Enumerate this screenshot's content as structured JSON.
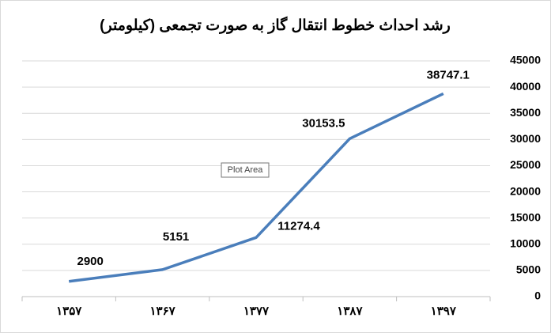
{
  "chart_data": {
    "type": "line",
    "title": "رشد احداث خطوط انتقال گاز به صورت تجمعی (کیلومتر)",
    "categories": [
      "۱۳۵۷",
      "۱۳۶۷",
      "۱۳۷۷",
      "۱۳۸۷",
      "۱۳۹۷"
    ],
    "series": [
      {
        "color": "#4a7ebb",
        "values": [
          2900,
          5151,
          11274.4,
          30153.5,
          38747.1
        ]
      }
    ],
    "ylim": [
      0,
      45000
    ],
    "yticks": [
      0,
      5000,
      10000,
      15000,
      20000,
      25000,
      30000,
      35000,
      40000,
      45000
    ],
    "y_axis_side": "right",
    "grid": true,
    "data_labels": true,
    "tooltip": "Plot Area"
  }
}
